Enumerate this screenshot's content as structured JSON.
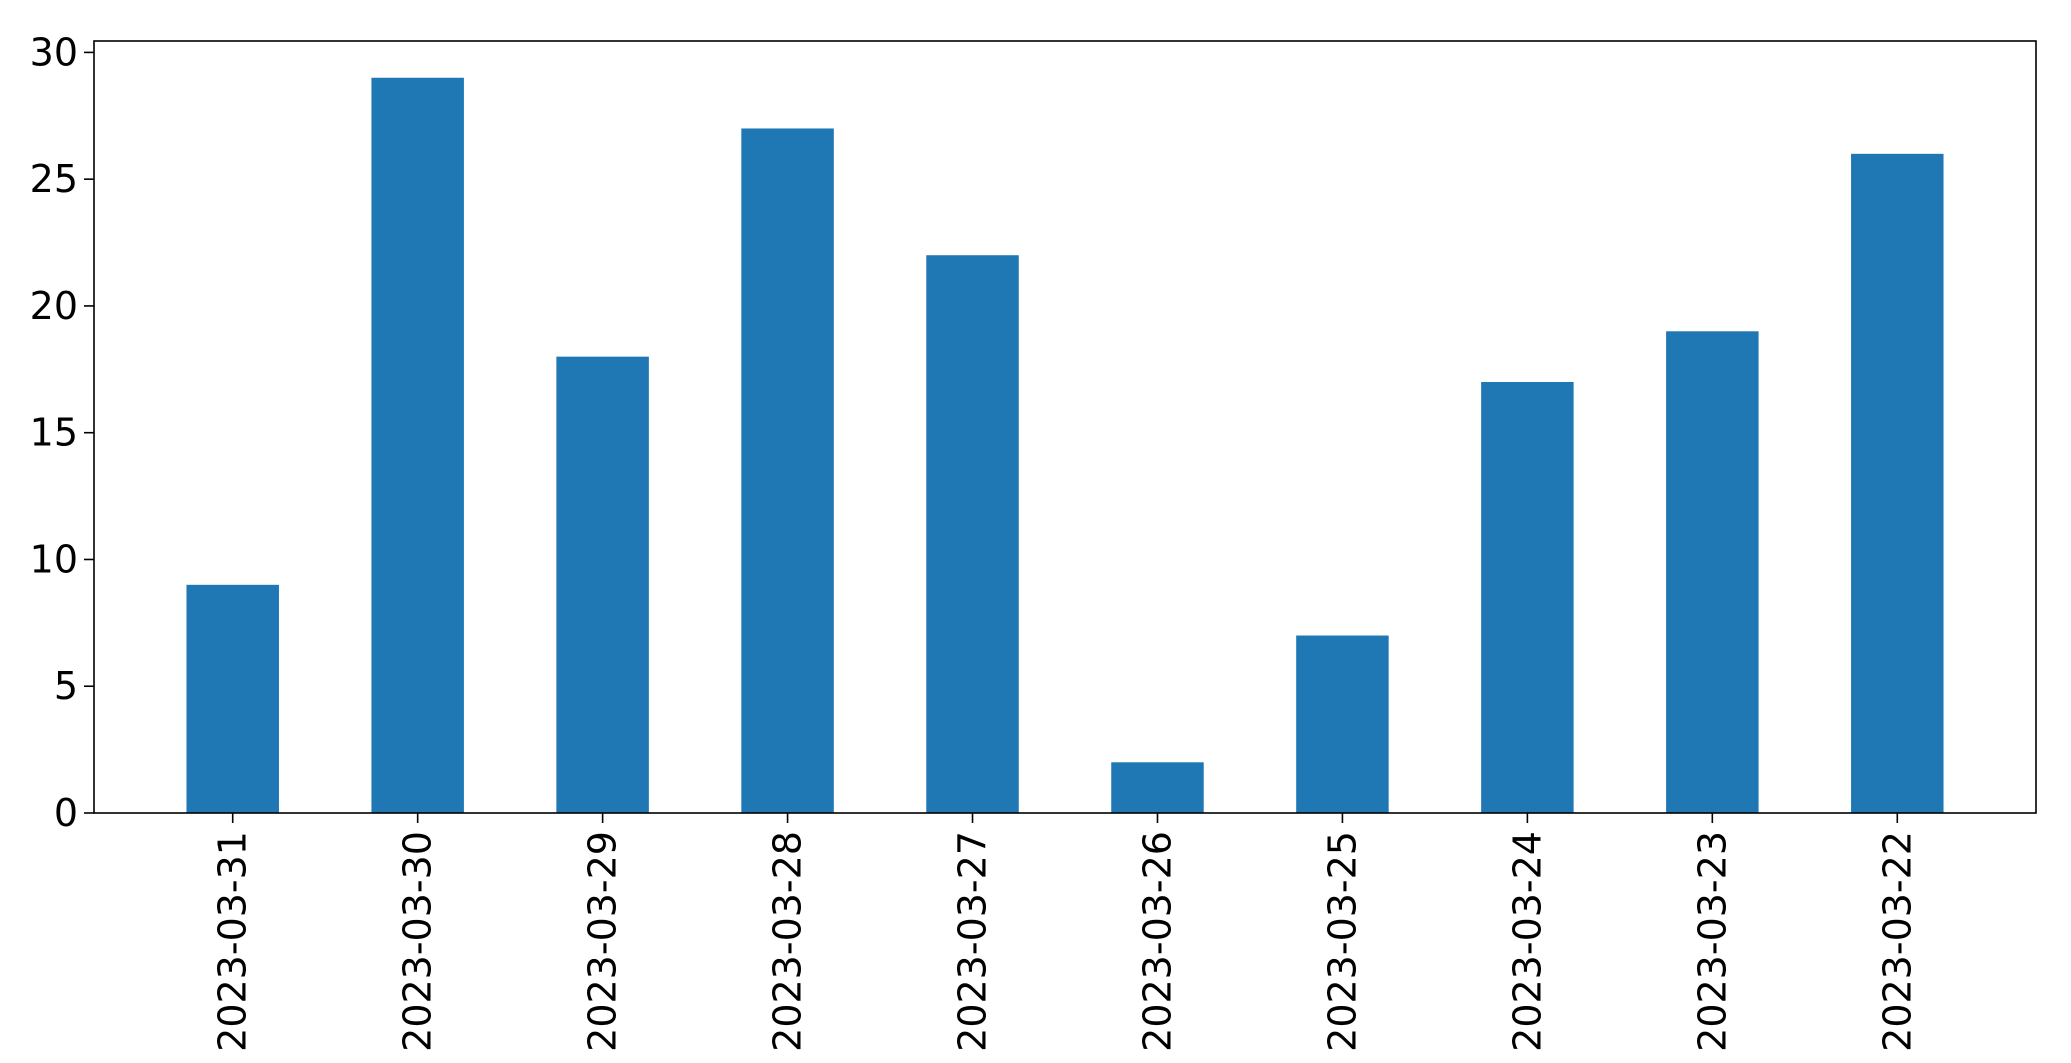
{
  "chart_data": {
    "type": "bar",
    "categories": [
      "2023-03-31",
      "2023-03-30",
      "2023-03-29",
      "2023-03-28",
      "2023-03-27",
      "2023-03-26",
      "2023-03-25",
      "2023-03-24",
      "2023-03-23",
      "2023-03-22"
    ],
    "values": [
      9,
      29,
      18,
      27,
      22,
      2,
      7,
      17,
      19,
      26
    ],
    "title": "",
    "xlabel": "",
    "ylabel": "",
    "ylim": [
      0,
      30.45
    ],
    "yticks": [
      0,
      5,
      10,
      15,
      20,
      25,
      30
    ],
    "grid": false,
    "legend": "none",
    "bar_color": "#1f77b4",
    "x_tick_rotation": "vertical"
  }
}
